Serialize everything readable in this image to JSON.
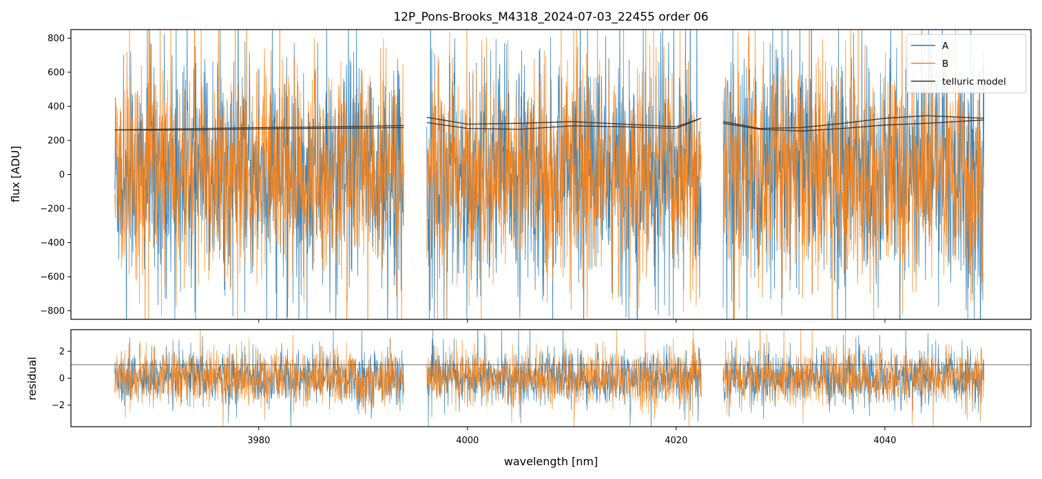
{
  "chart_data": {
    "type": "line",
    "title": "12P_Pons-Brooks_M4318_2024-07-03_22455  order 06",
    "xlabel": "wavelength [nm]",
    "xlim": [
      3962,
      4054
    ],
    "xticks": [
      "3980",
      "4000",
      "4020",
      "4040"
    ],
    "grid": false,
    "colors": {
      "A": "#1f77b4",
      "B": "#ff7f0e",
      "telluric": "#333333",
      "refline": "#555555"
    },
    "top_panel": {
      "ylabel": "flux [ADU]",
      "ylim": [
        -850,
        850
      ],
      "yticks": [
        "−800",
        "−600",
        "−400",
        "−200",
        "0",
        "200",
        "400",
        "600",
        "800"
      ],
      "legend": {
        "placement": "top-right",
        "entries": [
          "A",
          "B",
          "telluric model"
        ]
      },
      "segments": [
        {
          "x_range": [
            3966.2,
            3993.9
          ],
          "A_spread": 320,
          "B_spread": 310,
          "A_mean": 10,
          "B_mean": 0
        },
        {
          "x_range": [
            3996.1,
            4022.4
          ],
          "A_spread": 330,
          "B_spread": 300,
          "A_mean": 20,
          "B_mean": 0
        },
        {
          "x_range": [
            4024.5,
            4049.5
          ],
          "A_spread": 340,
          "B_spread": 320,
          "A_mean": 15,
          "B_mean": 0
        }
      ],
      "telluric_model": [
        {
          "name": "telluric model",
          "segment": 0,
          "x": [
            3966.2,
            3970,
            3975,
            3980,
            3985,
            3990,
            3993.9
          ],
          "y": [
            262,
            260,
            262,
            267,
            270,
            272,
            275
          ]
        },
        {
          "segment": 0,
          "x": [
            3966.2,
            3970,
            3975,
            3980,
            3985,
            3990,
            3993.9
          ],
          "y": [
            262,
            265,
            270,
            275,
            278,
            282,
            287
          ]
        },
        {
          "segment": 1,
          "x": [
            3996.1,
            4000,
            4005,
            4010,
            4015,
            4020,
            4022.4
          ],
          "y": [
            335,
            295,
            300,
            310,
            295,
            280,
            330
          ]
        },
        {
          "segment": 1,
          "x": [
            3996.1,
            4000,
            4005,
            4010,
            4015,
            4020,
            4022.4
          ],
          "y": [
            305,
            270,
            265,
            285,
            280,
            270,
            330
          ]
        },
        {
          "segment": 2,
          "x": [
            4024.5,
            4028,
            4032,
            4036,
            4040,
            4044,
            4049.5
          ],
          "y": [
            310,
            270,
            275,
            300,
            330,
            345,
            330
          ]
        },
        {
          "segment": 2,
          "x": [
            4024.5,
            4028,
            4032,
            4036,
            4040,
            4044,
            4049.5
          ],
          "y": [
            300,
            265,
            255,
            270,
            290,
            300,
            320
          ]
        }
      ]
    },
    "bottom_panel": {
      "ylabel": "residual",
      "ylim": [
        -3.6,
        3.6
      ],
      "yticks": [
        "−2",
        "0",
        "2"
      ],
      "reference_line_y": 1,
      "segments": [
        {
          "x_range": [
            3966.2,
            3993.9
          ],
          "A_spread": 1.0,
          "B_spread": 1.0
        },
        {
          "x_range": [
            3996.1,
            4022.4
          ],
          "A_spread": 1.0,
          "B_spread": 1.0
        },
        {
          "x_range": [
            4024.5,
            4049.5
          ],
          "A_spread": 1.0,
          "B_spread": 1.0
        }
      ]
    }
  }
}
